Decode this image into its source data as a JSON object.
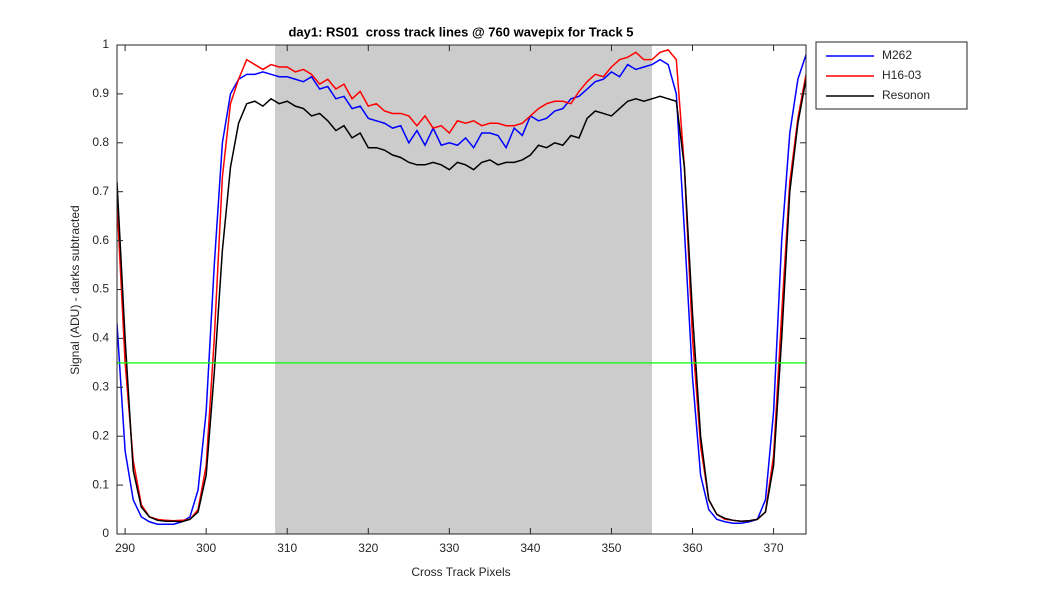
{
  "chart_data": {
    "type": "line",
    "title": "day1: RS01  cross track lines @ 760 wavepix for Track 5",
    "x_label": "Cross Track Pixels",
    "y_label": "Signal (ADU) - darks subtracted",
    "x": [
      289,
      290,
      291,
      292,
      293,
      294,
      295,
      296,
      297,
      298,
      299,
      300,
      301,
      302,
      303,
      304,
      305,
      306,
      307,
      308,
      309,
      310,
      311,
      312,
      313,
      314,
      315,
      316,
      317,
      318,
      319,
      320,
      321,
      322,
      323,
      324,
      325,
      326,
      327,
      328,
      329,
      330,
      331,
      332,
      333,
      334,
      335,
      336,
      337,
      338,
      339,
      340,
      341,
      342,
      343,
      344,
      345,
      346,
      347,
      348,
      349,
      350,
      351,
      352,
      353,
      354,
      355,
      356,
      357,
      358,
      359,
      360,
      361,
      362,
      363,
      364,
      365,
      366,
      367,
      368,
      369,
      370,
      371,
      372,
      373,
      374
    ],
    "xlim": [
      289,
      374
    ],
    "xticks": [
      290,
      300,
      310,
      320,
      330,
      340,
      350,
      360,
      370
    ],
    "ylim": [
      0,
      1
    ],
    "yticks": [
      0,
      0.1,
      0.2,
      0.3,
      0.4,
      0.5,
      0.6,
      0.7,
      0.8,
      0.9,
      1
    ],
    "shaded_region": {
      "x": [
        308.5,
        355
      ],
      "color": "#cccccc"
    },
    "reference_line": {
      "y": 0.35,
      "color": "#00ff00"
    },
    "legend": "outside-northeast",
    "series": [
      {
        "name": "M262",
        "color": "#0000ff",
        "values": [
          0.43,
          0.17,
          0.07,
          0.035,
          0.025,
          0.02,
          0.02,
          0.02,
          0.025,
          0.035,
          0.09,
          0.25,
          0.55,
          0.8,
          0.9,
          0.93,
          0.94,
          0.94,
          0.945,
          0.94,
          0.935,
          0.935,
          0.93,
          0.925,
          0.935,
          0.91,
          0.915,
          0.89,
          0.895,
          0.87,
          0.875,
          0.85,
          0.845,
          0.84,
          0.83,
          0.835,
          0.8,
          0.825,
          0.795,
          0.83,
          0.795,
          0.8,
          0.795,
          0.81,
          0.79,
          0.82,
          0.82,
          0.815,
          0.79,
          0.83,
          0.815,
          0.855,
          0.845,
          0.85,
          0.865,
          0.87,
          0.89,
          0.895,
          0.91,
          0.925,
          0.93,
          0.945,
          0.935,
          0.96,
          0.95,
          0.955,
          0.96,
          0.97,
          0.96,
          0.9,
          0.62,
          0.32,
          0.12,
          0.05,
          0.03,
          0.025,
          0.022,
          0.022,
          0.025,
          0.03,
          0.07,
          0.25,
          0.6,
          0.82,
          0.93,
          0.98
        ]
      },
      {
        "name": "H16-03",
        "color": "#ff0000",
        "values": [
          0.68,
          0.35,
          0.15,
          0.06,
          0.035,
          0.03,
          0.028,
          0.027,
          0.028,
          0.03,
          0.05,
          0.14,
          0.4,
          0.73,
          0.88,
          0.93,
          0.97,
          0.96,
          0.95,
          0.96,
          0.955,
          0.955,
          0.945,
          0.95,
          0.94,
          0.92,
          0.93,
          0.91,
          0.92,
          0.89,
          0.905,
          0.875,
          0.88,
          0.865,
          0.86,
          0.86,
          0.855,
          0.835,
          0.855,
          0.83,
          0.835,
          0.82,
          0.845,
          0.84,
          0.845,
          0.835,
          0.84,
          0.84,
          0.835,
          0.835,
          0.84,
          0.855,
          0.87,
          0.88,
          0.885,
          0.885,
          0.88,
          0.905,
          0.925,
          0.94,
          0.935,
          0.955,
          0.97,
          0.975,
          0.985,
          0.97,
          0.97,
          0.985,
          0.99,
          0.97,
          0.75,
          0.4,
          0.18,
          0.07,
          0.04,
          0.03,
          0.028,
          0.026,
          0.027,
          0.03,
          0.045,
          0.16,
          0.45,
          0.72,
          0.85,
          0.94
        ]
      },
      {
        "name": "Resonon",
        "color": "#000000",
        "values": [
          0.72,
          0.4,
          0.13,
          0.055,
          0.035,
          0.028,
          0.026,
          0.026,
          0.025,
          0.03,
          0.045,
          0.12,
          0.33,
          0.58,
          0.75,
          0.84,
          0.88,
          0.885,
          0.875,
          0.89,
          0.88,
          0.885,
          0.875,
          0.87,
          0.855,
          0.86,
          0.845,
          0.825,
          0.835,
          0.81,
          0.82,
          0.79,
          0.79,
          0.785,
          0.775,
          0.77,
          0.76,
          0.755,
          0.755,
          0.76,
          0.755,
          0.745,
          0.76,
          0.755,
          0.745,
          0.76,
          0.765,
          0.755,
          0.76,
          0.76,
          0.765,
          0.775,
          0.795,
          0.79,
          0.8,
          0.795,
          0.815,
          0.81,
          0.85,
          0.865,
          0.86,
          0.855,
          0.87,
          0.885,
          0.89,
          0.885,
          0.89,
          0.895,
          0.89,
          0.885,
          0.75,
          0.45,
          0.2,
          0.07,
          0.04,
          0.032,
          0.028,
          0.026,
          0.027,
          0.03,
          0.045,
          0.14,
          0.4,
          0.7,
          0.84,
          0.93
        ]
      }
    ]
  }
}
